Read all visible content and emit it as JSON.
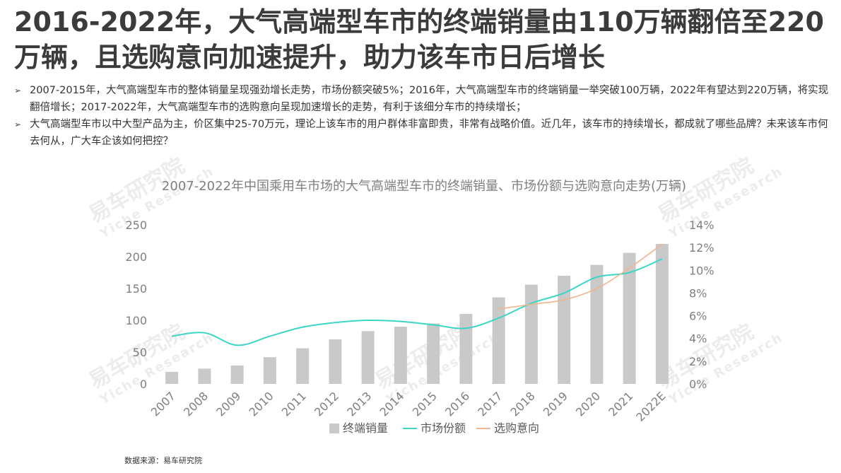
{
  "headline": "2016-2022年，大气高端型车市的终端销量由110万辆翻倍至220万辆，且选购意向加速提升，助力该车市日后增长",
  "bullets": [
    "2007-2015年，大气高端型车市的整体销量呈现强劲增长走势，市场份额突破5%；2016年，大气高端型车市的终端销量一举突破100万辆，2022年有望达到220万辆，将实现翻倍增长；2017-2022年，大气高端型车市的选购意向呈现加速增长的走势，有利于该细分车市的持续增长；",
    "大气高端型车市以中大型产品为主，价区集中25-70万元，理论上该车市的用户群体非富即贵，非常有战略价值。近几年，该车市的持续增长，都成就了哪些品牌？未来该车市何去何从，广大车企该如何把控？"
  ],
  "watermark": {
    "cn": "易车研究院",
    "en": "Yiche Research"
  },
  "source": "数据来源：易车研究院",
  "colors": {
    "bar": "#c9c9c9",
    "share": "#3bd6c6",
    "intent": "#f2b48c",
    "title": "#7f7f7f",
    "axis": "#7f7f7f"
  },
  "chart_data": {
    "type": "bar",
    "title": "2007-2022年中国乘用车市场的大气高端型车市的终端销量、市场份额与选购意向走势(万辆)",
    "categories": [
      "2007",
      "2008",
      "2009",
      "2010",
      "2011",
      "2012",
      "2013",
      "2014",
      "2015",
      "2016",
      "2017",
      "2018",
      "2019",
      "2020",
      "2021",
      "2022E"
    ],
    "ylim": [
      0,
      250
    ],
    "yticks": [
      "0",
      "50",
      "100",
      "150",
      "200",
      "250"
    ],
    "y2lim": [
      0,
      14
    ],
    "y2ticks": [
      "0%",
      "2%",
      "4%",
      "6%",
      "8%",
      "10%",
      "12%",
      "14%"
    ],
    "series": [
      {
        "name": "终端销量",
        "type": "bar",
        "axis": "left",
        "values": [
          19,
          24,
          29,
          42,
          56,
          70,
          83,
          90,
          95,
          110,
          136,
          156,
          170,
          187,
          206,
          220
        ]
      },
      {
        "name": "市场份额",
        "type": "line",
        "axis": "right",
        "values": [
          4.2,
          4.5,
          3.4,
          4.2,
          5.0,
          5.4,
          5.6,
          5.5,
          5.2,
          4.9,
          5.8,
          7.1,
          8.0,
          9.4,
          9.8,
          11.0
        ]
      },
      {
        "name": "选购意向",
        "type": "line",
        "axis": "right",
        "values": [
          null,
          null,
          null,
          null,
          null,
          null,
          null,
          null,
          null,
          null,
          6.6,
          7.0,
          7.4,
          8.4,
          10.2,
          12.3
        ]
      }
    ],
    "legend_position": "bottom"
  }
}
